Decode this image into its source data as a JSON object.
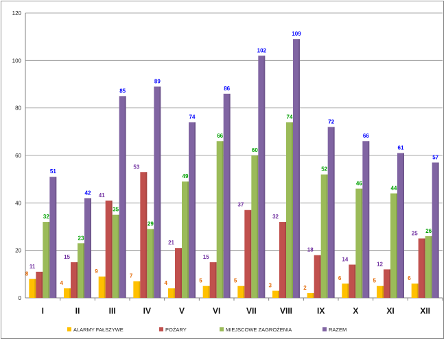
{
  "chart_data": {
    "type": "bar",
    "title": "",
    "xlabel": "",
    "ylabel": "",
    "ylim": [
      0,
      120
    ],
    "yticks": [
      0,
      20,
      40,
      60,
      80,
      100,
      120
    ],
    "grid": true,
    "legend_position": "bottom",
    "categories": [
      "I",
      "II",
      "III",
      "IV",
      "V",
      "VI",
      "VII",
      "VIII",
      "IX",
      "X",
      "XI",
      "XII"
    ],
    "series": [
      {
        "name": "ALARMY FAŁSZYWE",
        "color": "#FFC000",
        "label_color": "#E46C0A",
        "values": [
          8,
          4,
          9,
          7,
          4,
          5,
          5,
          3,
          2,
          6,
          5,
          6
        ]
      },
      {
        "name": "POŻARY",
        "color": "#C0504D",
        "label_color": "#7030A0",
        "values": [
          11,
          15,
          41,
          53,
          21,
          15,
          37,
          32,
          18,
          14,
          12,
          25
        ]
      },
      {
        "name": "MIEJSCOWE ZAGROŻENIA",
        "color": "#9BBB59",
        "label_color": "#00A000",
        "values": [
          32,
          23,
          35,
          29,
          49,
          66,
          60,
          74,
          52,
          46,
          44,
          26
        ]
      },
      {
        "name": "RAZEM",
        "color": "#8064A2",
        "label_color": "#0000FF",
        "values": [
          51,
          42,
          85,
          89,
          74,
          86,
          102,
          109,
          72,
          66,
          61,
          57
        ]
      }
    ]
  }
}
